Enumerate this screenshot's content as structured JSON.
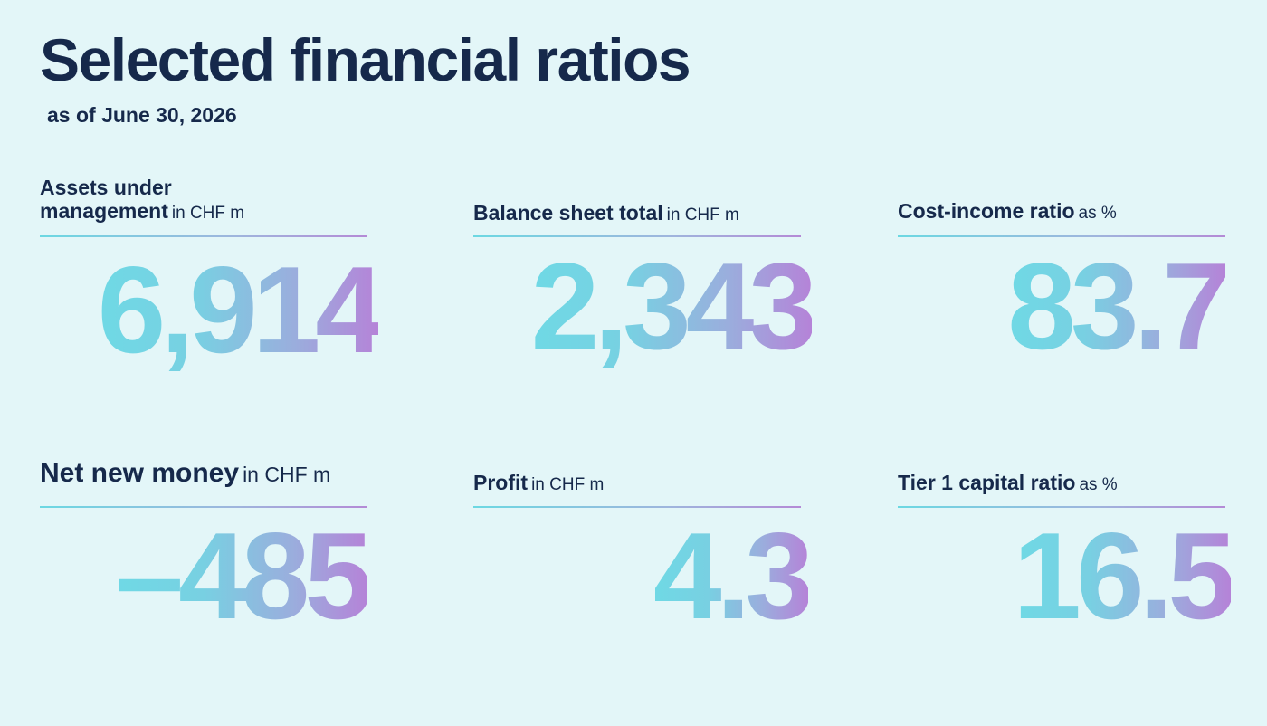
{
  "header": {
    "title": "Selected financial ratios",
    "subtitle": "as of June 30, 2026"
  },
  "metrics": [
    {
      "label": "Assets under management",
      "label_line1": "Assets under",
      "label_line2": "management",
      "unit": "in CHF m",
      "value": "6,914"
    },
    {
      "label": "Balance sheet total",
      "unit": "in CHF m",
      "value": "2,343"
    },
    {
      "label": "Cost-income ratio",
      "unit": "as %",
      "value": "83.7"
    },
    {
      "label": "Net new money",
      "unit": "in CHF m",
      "value": "–485"
    },
    {
      "label": "Profit",
      "unit": "in CHF m",
      "value": "4.3"
    },
    {
      "label": "Tier 1 capital ratio",
      "unit": "as %",
      "value": "16.5"
    }
  ],
  "colors": {
    "background": "#e3f6f8",
    "text": "#16294b",
    "gradient_start": "#6fd9e5",
    "gradient_end": "#b583d8"
  }
}
